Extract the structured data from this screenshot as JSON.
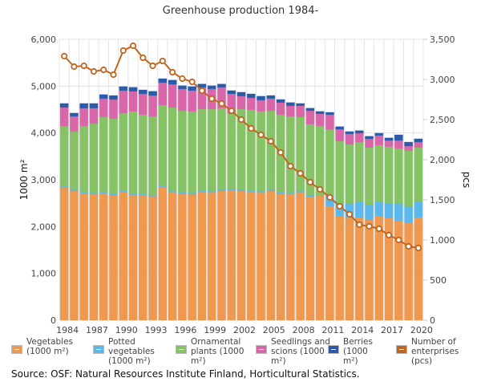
{
  "chart_data": {
    "type": "bar",
    "stacked": true,
    "title": "Greenhouse production 1984-",
    "xlabel": "",
    "ylabel": "1000 m²",
    "y2label": "pcs",
    "ylim": [
      0,
      6000
    ],
    "y2lim": [
      0,
      3500
    ],
    "yticks": [
      "0",
      "1,000",
      "2,000",
      "3,000",
      "4,000",
      "5,000",
      "6,000"
    ],
    "y2ticks": [
      "0",
      "500",
      "1,000",
      "1,500",
      "2,000",
      "2,500",
      "3,000",
      "3,500"
    ],
    "xticks": [
      "1984",
      "1987",
      "1990",
      "1993",
      "1996",
      "1999",
      "2002",
      "2005",
      "2008",
      "2011",
      "2014",
      "2017",
      "2020"
    ],
    "grid": true,
    "legend_position": "bottom",
    "categories": [
      "1984",
      "1985",
      "1986",
      "1987",
      "1988",
      "1989",
      "1990",
      "1991",
      "1992",
      "1993",
      "1994",
      "1995",
      "1996",
      "1997",
      "1998",
      "1999",
      "2000",
      "2001",
      "2002",
      "2003",
      "2004",
      "2005",
      "2006",
      "2007",
      "2008",
      "2009",
      "2010",
      "2011",
      "2012",
      "2013",
      "2014",
      "2015",
      "2016",
      "2017",
      "2018",
      "2019",
      "2020"
    ],
    "series": [
      {
        "name": "Vegetables\n(1000 m²)",
        "type": "bar",
        "axis": "left",
        "color": "#ee9850",
        "values": [
          2830,
          2760,
          2710,
          2690,
          2710,
          2670,
          2745,
          2680,
          2660,
          2650,
          2850,
          2725,
          2710,
          2690,
          2745,
          2725,
          2760,
          2780,
          2760,
          2745,
          2725,
          2760,
          2710,
          2690,
          2725,
          2640,
          2660,
          2435,
          2215,
          2180,
          2195,
          2145,
          2215,
          2180,
          2125,
          2075,
          2195
        ]
      },
      {
        "name": "Potted\nvegetables\n(1000 m²)",
        "type": "bar",
        "axis": "left",
        "color": "#5cb8ea",
        "values": [
          30,
          30,
          30,
          30,
          30,
          30,
          30,
          30,
          30,
          30,
          30,
          30,
          30,
          30,
          30,
          30,
          30,
          30,
          30,
          30,
          30,
          30,
          30,
          30,
          30,
          35,
          15,
          225,
          290,
          305,
          345,
          325,
          325,
          325,
          360,
          360,
          345
        ]
      },
      {
        "name": "Ornamental\nplants (1000\nm²)",
        "type": "bar",
        "axis": "left",
        "color": "#86c266",
        "values": [
          1290,
          1240,
          1410,
          1480,
          1600,
          1605,
          1650,
          1750,
          1700,
          1675,
          1715,
          1790,
          1735,
          1740,
          1735,
          1755,
          1740,
          1600,
          1720,
          1720,
          1705,
          1685,
          1650,
          1635,
          1585,
          1510,
          1475,
          1420,
          1320,
          1270,
          1265,
          1220,
          1200,
          1200,
          1185,
          1185,
          1150
        ]
      },
      {
        "name": "Seedlings and\nscions (1000\nm²)",
        "type": "bar",
        "axis": "left",
        "color": "#d966a8",
        "values": [
          395,
          325,
          380,
          330,
          395,
          410,
          480,
          430,
          445,
          445,
          480,
          495,
          465,
          445,
          465,
          430,
          445,
          425,
          275,
          255,
          240,
          260,
          260,
          225,
          240,
          290,
          260,
          310,
          255,
          225,
          190,
          185,
          205,
          135,
          170,
          100,
          115
        ]
      },
      {
        "name": "Berries\n(1000\nm²)",
        "type": "bar",
        "axis": "left",
        "color": "#2a5ba8",
        "values": [
          85,
          70,
          100,
          100,
          85,
          85,
          85,
          85,
          85,
          90,
          85,
          90,
          70,
          85,
          70,
          70,
          70,
          70,
          85,
          85,
          85,
          65,
          65,
          70,
          50,
          55,
          50,
          50,
          55,
          50,
          55,
          55,
          50,
          55,
          120,
          85,
          70
        ]
      },
      {
        "name": "Number of\nenterprises\n(pcs)",
        "type": "line",
        "axis": "right",
        "color": "#c0661f",
        "values": [
          3290,
          3160,
          3170,
          3100,
          3120,
          3060,
          3360,
          3420,
          3270,
          3170,
          3230,
          3090,
          3010,
          2970,
          2860,
          2760,
          2700,
          2610,
          2500,
          2390,
          2310,
          2230,
          2090,
          1920,
          1830,
          1720,
          1630,
          1530,
          1420,
          1320,
          1190,
          1170,
          1140,
          1060,
          1000,
          920,
          900
        ]
      }
    ]
  },
  "source": "Source: OSF: Natural Resources Institute Finland, Horticultural Statistics."
}
